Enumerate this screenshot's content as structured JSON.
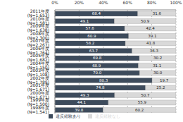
{
  "chart_data": {
    "type": "bar",
    "orientation": "horizontal",
    "stacked": true,
    "data_labels": true,
    "grid": true,
    "legend": "bottom",
    "categories": [
      "2011年度 (N=1,653)",
      "2010年度 (N=1,581)",
      "2009年度 (N=1,638)",
      "2008年度 (N=2,300)",
      "2007年度 (N=2,267)",
      "2006年度 (N=1,764)",
      "2005年度 (N=1,682)",
      "2004年度 (N=1,150)",
      "2003年度 (N=1,108)",
      "2002年度 (N=1,789)",
      "2001年度 (N=1,671)",
      "2000年度 (N=1,671)",
      "1999年度 (N=1,500)",
      "1998年度 (N=1,541)"
    ],
    "series": [
      {
        "name": "違反経験あり",
        "color": "#3d4b5c",
        "values": [
          68.4,
          49.1,
          57.6,
          60.9,
          58.2,
          63.7,
          69.8,
          68.9,
          70.0,
          80.3,
          74.8,
          49.3,
          44.1,
          39.8
        ],
        "value_labels": [
          "68.4",
          "49.1",
          "57.6",
          "60.9",
          "58.2",
          "63.7",
          "69.8",
          "68.9",
          "70.0",
          "80.3",
          "74.8",
          "49.3",
          "44.1",
          "39.8"
        ]
      },
      {
        "name": "違反経験なし",
        "color": "#d9d9d9",
        "values": [
          31.6,
          50.9,
          42.4,
          39.1,
          41.8,
          36.3,
          30.2,
          31.1,
          30.0,
          19.7,
          25.2,
          50.7,
          55.9,
          60.2
        ],
        "value_labels": [
          "31.6",
          "50.9",
          "42.4",
          "39.1",
          "41.8",
          "36.3",
          "30.2",
          "31.1",
          "30.0",
          "19.7",
          "25.2",
          "50.7",
          "55.9",
          "60.2"
        ]
      }
    ],
    "xlim": [
      0,
      100
    ],
    "xticks": [
      {
        "value": 0,
        "label": "0%"
      },
      {
        "value": 20,
        "label": "20%"
      },
      {
        "value": 40,
        "label": "40%"
      },
      {
        "value": 60,
        "label": "60%"
      },
      {
        "value": 80,
        "label": "80%"
      },
      {
        "value": 100,
        "label": "100%"
      }
    ]
  }
}
